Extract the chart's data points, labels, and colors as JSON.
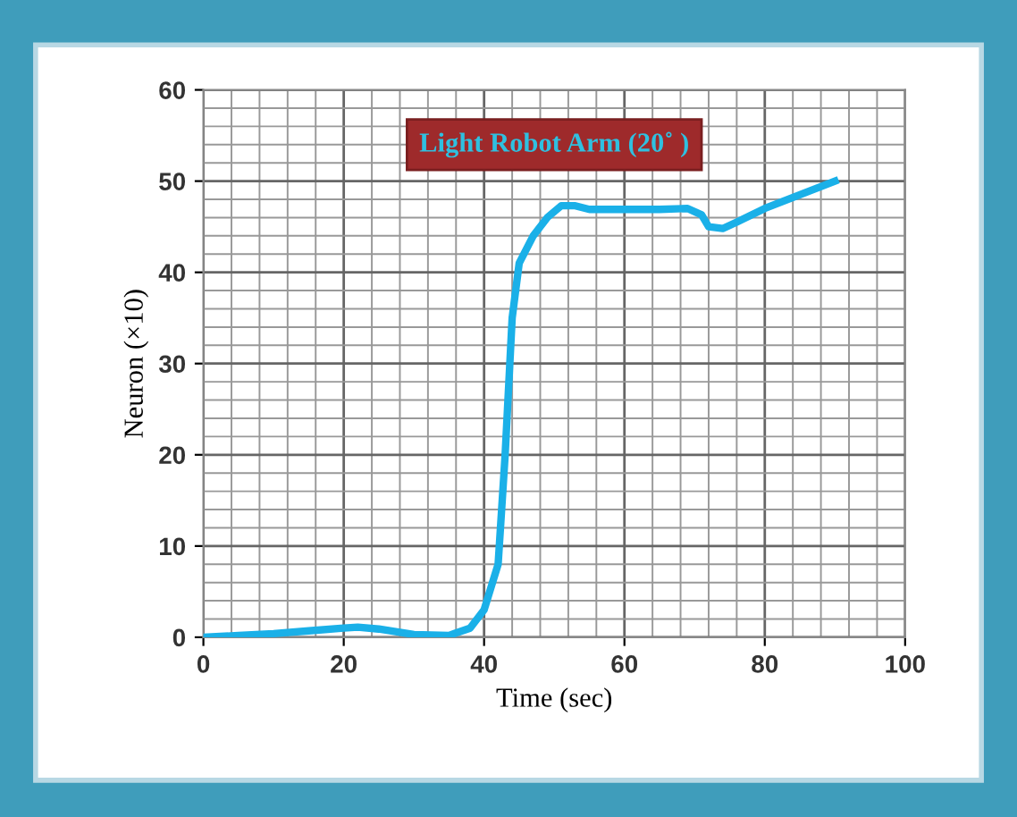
{
  "chart_data": {
    "type": "line",
    "title": "Light Robot Arm (20˚ )",
    "xlabel": "Time (sec)",
    "ylabel": "Neuron (×10)",
    "x": [
      0,
      5,
      10,
      15,
      20,
      22,
      25,
      30,
      35,
      38,
      40,
      42,
      43,
      44,
      45,
      47,
      49,
      51,
      53,
      55,
      60,
      65,
      69,
      71,
      72,
      74,
      76,
      80,
      85,
      90
    ],
    "series": [
      {
        "color": "#1ab0e8",
        "values": [
          0,
          0.2,
          0.4,
          0.7,
          1,
          1.1,
          0.9,
          0.3,
          0.2,
          1,
          3,
          8,
          20,
          35,
          41,
          44,
          46,
          47.3,
          47.3,
          46.9,
          46.9,
          46.9,
          47,
          46.3,
          45,
          44.8,
          45.5,
          47,
          48.5,
          50
        ]
      }
    ],
    "xlim": [
      0,
      100
    ],
    "xticks": [
      0,
      20,
      40,
      60,
      80,
      100
    ],
    "ylim": [
      0,
      60
    ],
    "yticks": [
      0,
      10,
      20,
      30,
      40,
      50,
      60
    ],
    "grid": true,
    "legend": false,
    "marker": "none",
    "line_style": "solid"
  }
}
